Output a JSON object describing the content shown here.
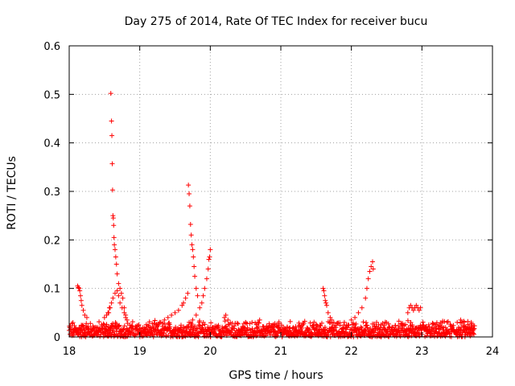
{
  "chart_data": {
    "type": "scatter",
    "title": "Day 275 of 2014, Rate Of TEC Index for receiver bucu",
    "xlabel": "GPS time / hours",
    "ylabel": "ROTI / TECUs",
    "xlim": [
      18,
      24
    ],
    "ylim": [
      0,
      0.6
    ],
    "xticks": [
      18,
      19,
      20,
      21,
      22,
      23,
      24
    ],
    "yticks": [
      0,
      0.1,
      0.2,
      0.3,
      0.4,
      0.5,
      0.6
    ],
    "xtick_labels": [
      "18",
      "19",
      "20",
      "21",
      "22",
      "23",
      "24"
    ],
    "ytick_labels": [
      "0",
      "0.1",
      "0.2",
      "0.3",
      "0.4",
      "0.5",
      "0.6"
    ],
    "grid": true,
    "marker": "plus",
    "color": "#ff0000",
    "series": [
      {
        "x": [
          18.12,
          18.13,
          18.14,
          18.15,
          18.16,
          18.17,
          18.18,
          18.2,
          18.22,
          18.25,
          18.5,
          18.53,
          18.56,
          18.58,
          18.59,
          18.6,
          18.605,
          18.61,
          18.615,
          18.62,
          18.625,
          18.63,
          18.635,
          18.64,
          18.65,
          18.66,
          18.67,
          18.68,
          18.7,
          18.72,
          18.74,
          18.76,
          18.78,
          18.8,
          18.82,
          18.55,
          18.57,
          18.6,
          18.62,
          18.65,
          18.68,
          18.7,
          18.72,
          18.75,
          18.78,
          18.8,
          19.3,
          19.35,
          19.4,
          19.45,
          19.5,
          19.55,
          19.6,
          19.62,
          19.65,
          19.68,
          19.69,
          19.7,
          19.71,
          19.72,
          19.73,
          19.74,
          19.75,
          19.76,
          19.77,
          19.78,
          19.8,
          19.82,
          19.7,
          19.75,
          19.8,
          19.85,
          19.88,
          19.9,
          19.92,
          19.95,
          19.97,
          19.98,
          19.99,
          20.0,
          20.2,
          20.22,
          20.25,
          20.5,
          20.7,
          21.6,
          21.61,
          21.62,
          21.63,
          21.64,
          21.65,
          21.67,
          21.7,
          21.72,
          21.75,
          21.9,
          22.0,
          22.05,
          22.1,
          22.15,
          22.2,
          22.22,
          22.24,
          22.26,
          22.28,
          22.3,
          22.31,
          22.8,
          22.82,
          22.84,
          22.86,
          22.88,
          22.9,
          22.92,
          22.94,
          22.96,
          22.98,
          23.5,
          23.55,
          23.6,
          23.65,
          23.7
        ],
        "y": [
          0.105,
          0.102,
          0.1,
          0.095,
          0.085,
          0.075,
          0.065,
          0.055,
          0.045,
          0.04,
          0.04,
          0.045,
          0.05,
          0.06,
          0.502,
          0.445,
          0.415,
          0.357,
          0.303,
          0.25,
          0.245,
          0.23,
          0.205,
          0.19,
          0.18,
          0.165,
          0.15,
          0.13,
          0.11,
          0.1,
          0.09,
          0.08,
          0.06,
          0.045,
          0.035,
          0.05,
          0.06,
          0.07,
          0.08,
          0.09,
          0.095,
          0.085,
          0.07,
          0.06,
          0.05,
          0.04,
          0.03,
          0.035,
          0.04,
          0.045,
          0.05,
          0.055,
          0.065,
          0.07,
          0.08,
          0.09,
          0.313,
          0.295,
          0.27,
          0.232,
          0.21,
          0.19,
          0.18,
          0.165,
          0.145,
          0.125,
          0.1,
          0.085,
          0.03,
          0.035,
          0.045,
          0.06,
          0.07,
          0.085,
          0.1,
          0.12,
          0.14,
          0.16,
          0.165,
          0.18,
          0.04,
          0.045,
          0.035,
          0.03,
          0.035,
          0.1,
          0.095,
          0.085,
          0.075,
          0.07,
          0.065,
          0.05,
          0.04,
          0.035,
          0.03,
          0.03,
          0.035,
          0.04,
          0.05,
          0.06,
          0.08,
          0.1,
          0.12,
          0.135,
          0.145,
          0.155,
          0.14,
          0.05,
          0.06,
          0.065,
          0.06,
          0.055,
          0.06,
          0.065,
          0.06,
          0.055,
          0.06,
          0.03,
          0.035,
          0.03,
          0.032,
          0.03
        ]
      }
    ],
    "baseline_band": {
      "x_range": [
        18.0,
        23.75
      ],
      "y_range": [
        0.0,
        0.035
      ]
    }
  }
}
